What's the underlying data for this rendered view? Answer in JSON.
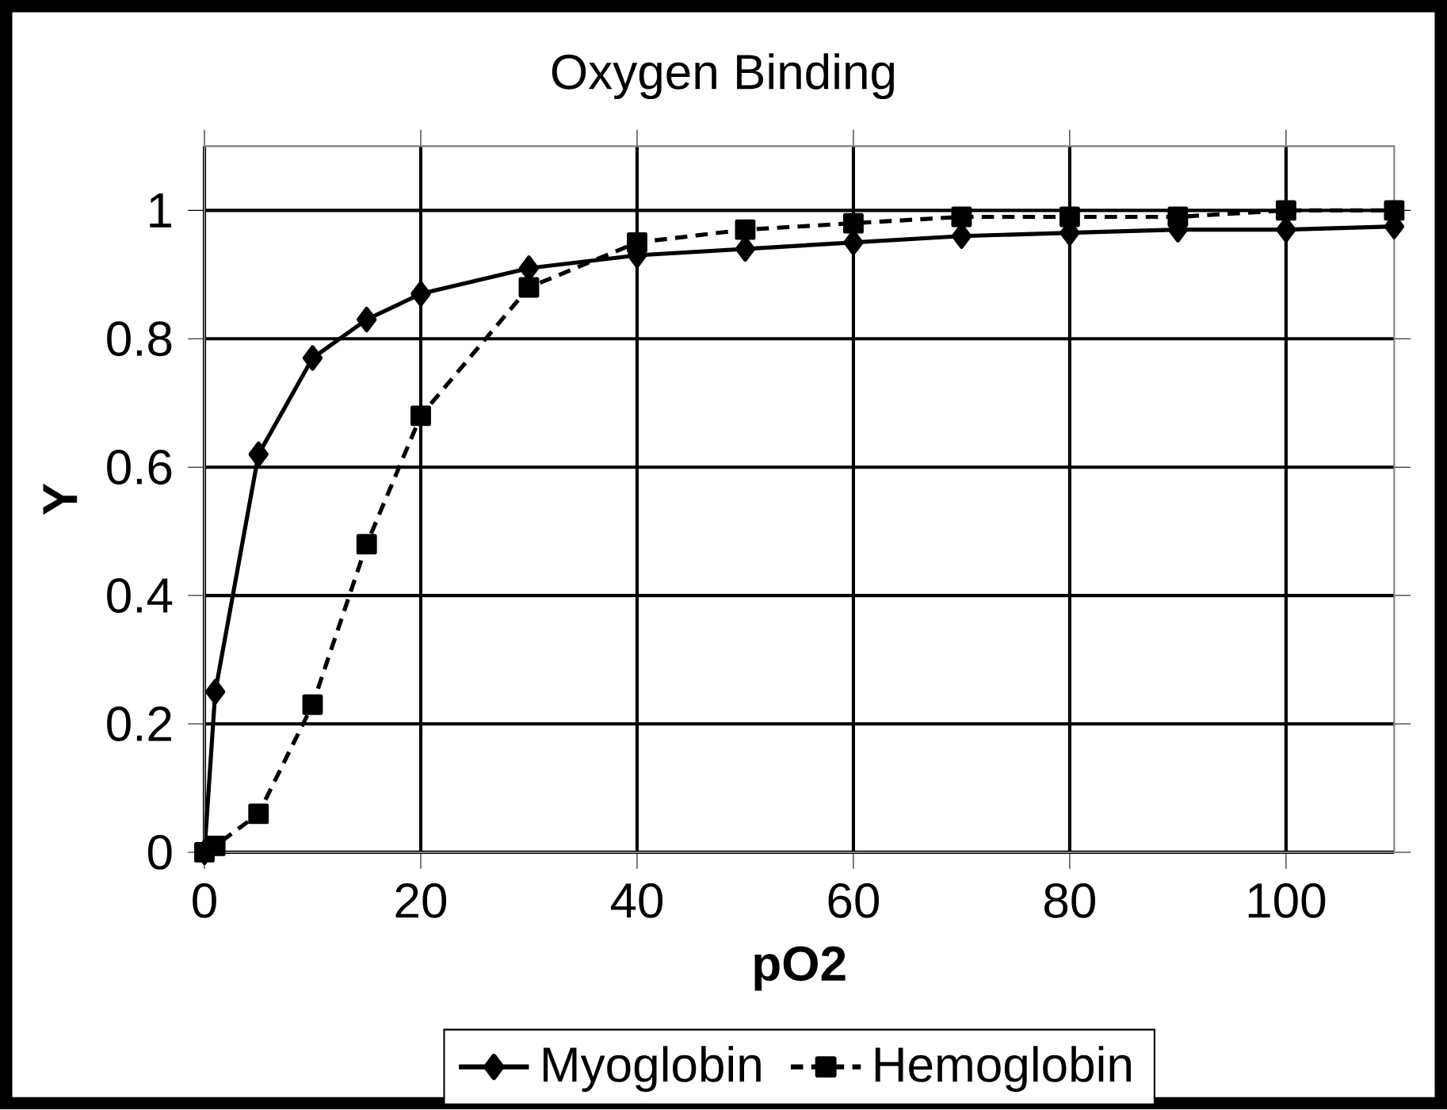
{
  "chart_data": {
    "type": "line",
    "title": "Oxygen Binding",
    "xlabel": "pO2",
    "ylabel": "Y",
    "xlim": [
      0,
      110
    ],
    "ylim": [
      0,
      1.1
    ],
    "xticks": [
      0,
      20,
      40,
      60,
      80,
      100
    ],
    "yticks": [
      0,
      0.2,
      0.4,
      0.6,
      0.8,
      1
    ],
    "grid": true,
    "legend": "bottom",
    "series": [
      {
        "name": "Myoglobin",
        "color": "#000000",
        "marker": "diamond",
        "line_style": "solid",
        "x": [
          0,
          1,
          5,
          10,
          15,
          20,
          30,
          40,
          50,
          60,
          70,
          80,
          90,
          100,
          110
        ],
        "values": [
          0,
          0.25,
          0.62,
          0.77,
          0.83,
          0.87,
          0.91,
          0.93,
          0.94,
          0.95,
          0.96,
          0.965,
          0.97,
          0.97,
          0.975
        ]
      },
      {
        "name": "Hemoglobin",
        "color": "#000000",
        "marker": "square",
        "line_style": "dashed",
        "x": [
          0,
          1,
          5,
          10,
          15,
          20,
          30,
          40,
          50,
          60,
          70,
          80,
          90,
          100,
          110
        ],
        "values": [
          0,
          0.01,
          0.06,
          0.23,
          0.48,
          0.68,
          0.88,
          0.95,
          0.97,
          0.98,
          0.99,
          0.99,
          0.99,
          1.0,
          1.0
        ]
      }
    ]
  }
}
